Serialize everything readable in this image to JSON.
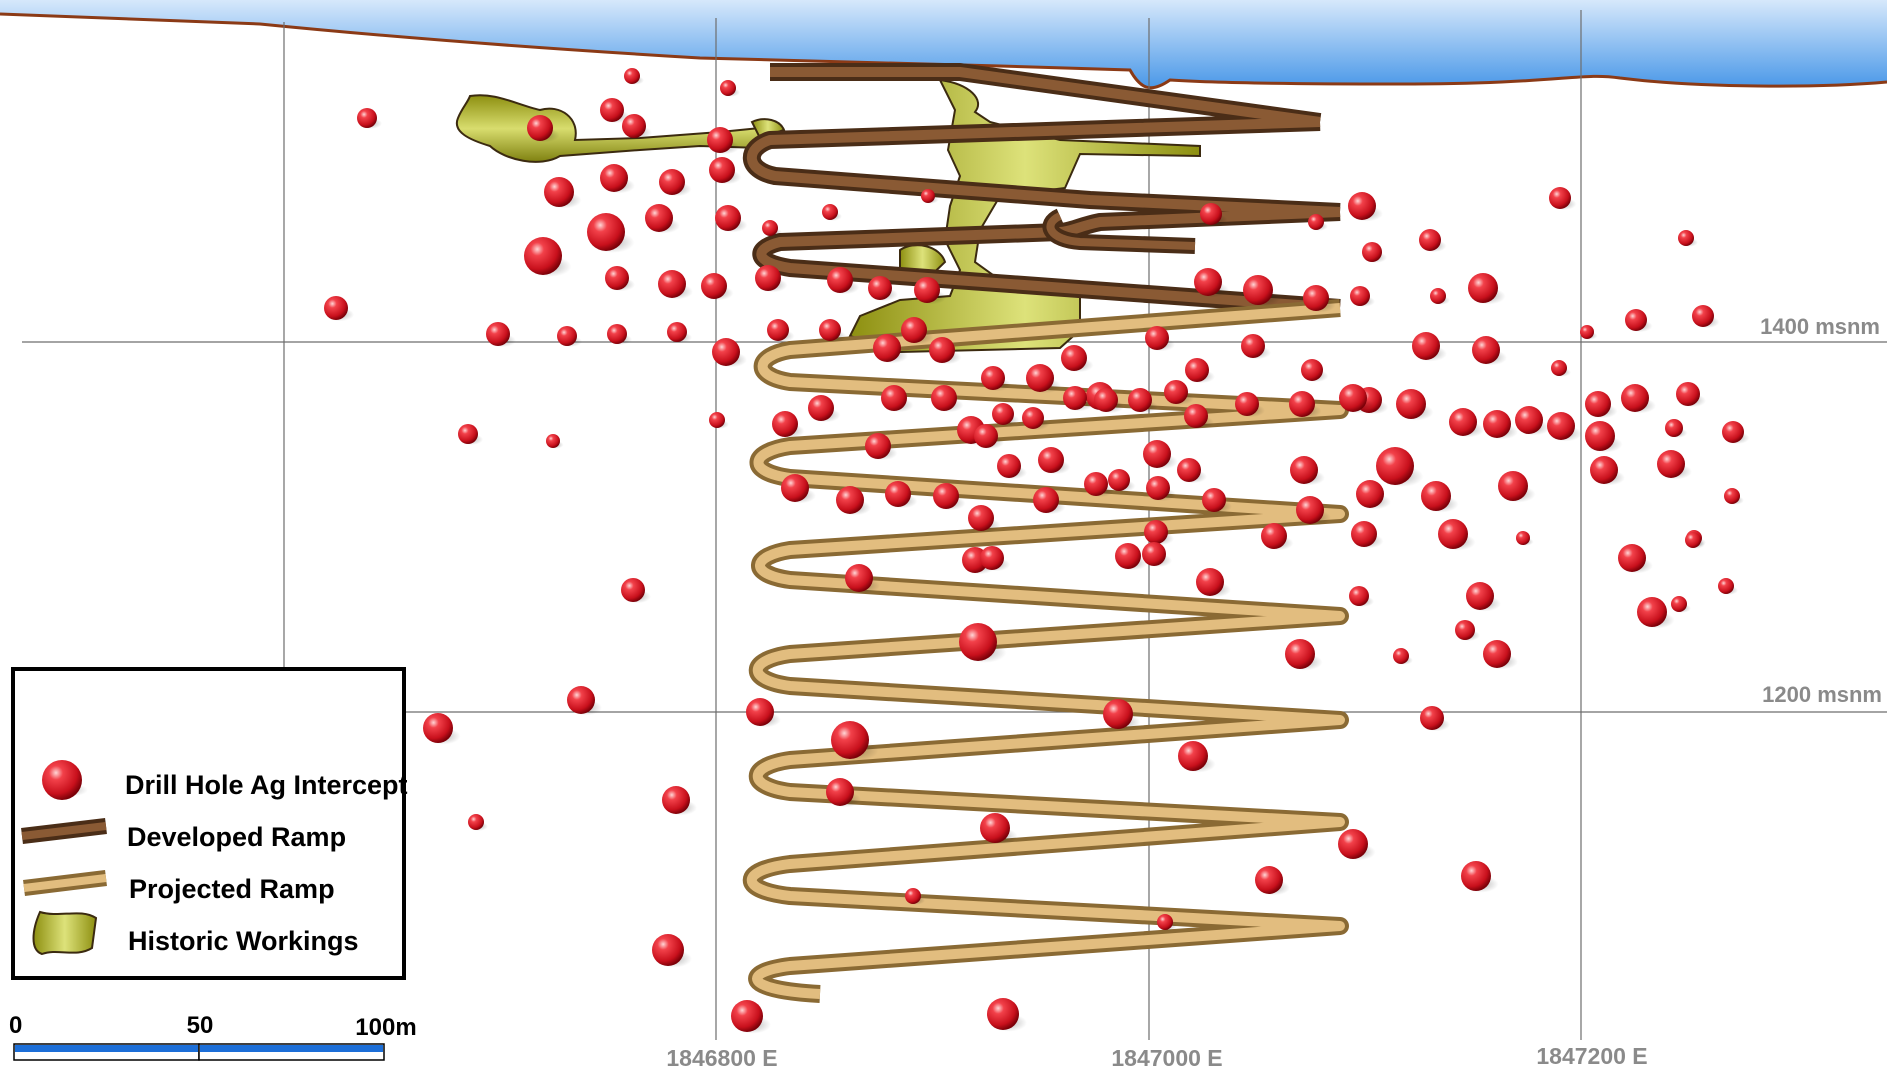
{
  "elevation_labels": {
    "e1400": "1400 msnm",
    "e1200": "1200 msnm"
  },
  "easting_labels": {
    "e1846800": "1846800 E",
    "e1847000": "1847000 E",
    "e1847200": "1847200 E"
  },
  "legend": {
    "drill_hole": "Drill Hole Ag Intercept",
    "developed_ramp": "Developed Ramp",
    "projected_ramp": "Projected Ramp",
    "historic_workings": "Historic Workings"
  },
  "scale_bar": {
    "zero": "0",
    "mid": "50",
    "end": "100m"
  },
  "colors": {
    "sky_top": "#bcd8f6",
    "sky_bottom": "#4f9be8",
    "topography": "#8b3a16",
    "developed_ramp": "#6b4427",
    "projected_ramp": "#c9a064",
    "historic_workings": "#a6a81c",
    "drill_hole": "#e0242c",
    "grid": "#6d6d6d",
    "scale_blue": "#1d6fd8"
  }
}
